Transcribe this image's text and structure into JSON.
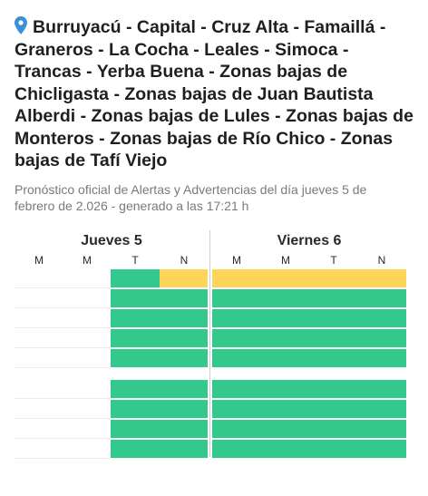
{
  "header": {
    "title": "Burruyacú - Capital - Cruz Alta - Famaillá - Graneros - La Cocha - Leales - Simoca - Trancas - Yerba Buena - Zonas bajas de Chicligasta - Zonas bajas de Juan Bautista Alberdi - Zonas bajas de Lules - Zonas bajas de Monteros - Zonas bajas de Río Chico - Zonas bajas de Tafí Viejo",
    "subtitle": "Pronóstico oficial de Alertas y Advertencias del día jueves 5 de febrero de 2.026 - generado a las 17:21 h",
    "pin_icon": "map-pin-icon",
    "pin_color": "#3d8fd6"
  },
  "forecast": {
    "colors": {
      "green": "#33c98d",
      "yellow": "#fdd55b"
    },
    "days": [
      {
        "label": "Jueves 5",
        "slots": [
          "M",
          "M",
          "T",
          "N"
        ]
      },
      {
        "label": "Viernes 6",
        "slots": [
          "M",
          "M",
          "T",
          "N"
        ]
      }
    ],
    "groups": [
      {
        "rows": [
          [
            null,
            null,
            "green",
            "yellow",
            "yellow",
            "yellow",
            "yellow",
            "yellow"
          ],
          [
            null,
            null,
            "green",
            "green",
            "green",
            "green",
            "green",
            "green"
          ],
          [
            null,
            null,
            "green",
            "green",
            "green",
            "green",
            "green",
            "green"
          ],
          [
            null,
            null,
            "green",
            "green",
            "green",
            "green",
            "green",
            "green"
          ],
          [
            null,
            null,
            "green",
            "green",
            "green",
            "green",
            "green",
            "green"
          ]
        ]
      },
      {
        "rows": [
          [
            null,
            null,
            "green",
            "green",
            "green",
            "green",
            "green",
            "green"
          ],
          [
            null,
            null,
            "green",
            "green",
            "green",
            "green",
            "green",
            "green"
          ],
          [
            null,
            null,
            "green",
            "green",
            "green",
            "green",
            "green",
            "green"
          ],
          [
            null,
            null,
            "green",
            "green",
            "green",
            "green",
            "green",
            "green"
          ]
        ]
      }
    ]
  }
}
